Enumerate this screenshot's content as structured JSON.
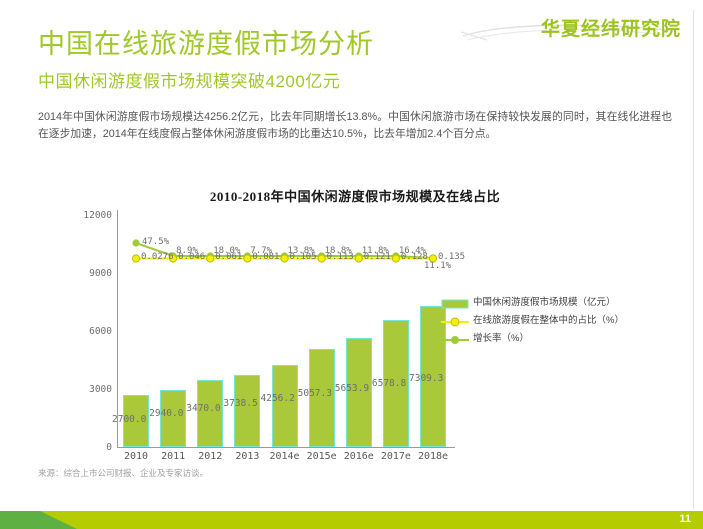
{
  "slide": {
    "logo_text": "华夏经纬研究院",
    "title": "中国在线旅游度假市场分析",
    "subtitle": "中国休闲游度假市场规模突破4200亿元",
    "body": "2014年中国休闲游度假市场规模达4256.2亿元，比去年同期增长13.8%。中国休闲旅游市场在保持较快发展的同时，其在线化进程也在逐步加速，2014年在线度假占整体休闲游度假市场的比重达10.5%，比去年增加2.4个百分点。",
    "source_note": "来源：综合上市公司财报、企业及专家访谈。",
    "page_number": "11"
  },
  "colors": {
    "accent_green": "#a0c828",
    "bar_fill": "#aac93a",
    "bar_border": "#76e6d5",
    "line_yellow": "#f2ef0a",
    "line_green": "#9fcb3a",
    "footer_dark_green": "#5fb043",
    "footer_light_green": "#b5cc00",
    "chart_label_grey": "#6f6f6f"
  },
  "chart_data": {
    "type": "bar",
    "title": "2010-2018年中国休闲游度假市场规模及在线占比",
    "categories": [
      "2010",
      "2011",
      "2012",
      "2013",
      "2014e",
      "2015e",
      "2016e",
      "2017e",
      "2018e"
    ],
    "series": [
      {
        "name": "中国休闲游度假市场规模（亿元）",
        "type": "bar",
        "color": "#aac93a",
        "values": [
          2700.0,
          2940.0,
          3470.0,
          3738.5,
          4256.2,
          5057.3,
          5653.9,
          6578.8,
          7309.3
        ],
        "labels": [
          "2700.0",
          "2940.0",
          "3470.0",
          "3738.5",
          "4256.2",
          "5057.3",
          "5653.9",
          "6578.8",
          "7309.3"
        ]
      },
      {
        "name": "在线旅游度假在整体中的占比（%）",
        "type": "line",
        "color": "#f2ef0a",
        "values": [
          0.0276,
          0.046,
          0.061,
          0.081,
          0.105,
          0.113,
          0.121,
          0.128,
          0.135
        ],
        "labels": [
          "0.0276",
          "0.046",
          "0.061",
          "0.081",
          "0.105",
          "0.113",
          "0.121",
          "0.128",
          "0.135"
        ]
      },
      {
        "name": "增长率（%）",
        "type": "line",
        "color": "#9fcb3a",
        "values": [
          0.475,
          0.089,
          0.18,
          0.077,
          0.138,
          0.188,
          0.118,
          0.164,
          0.111
        ],
        "labels": [
          "47.5%",
          "8.9%",
          "18.0%",
          "7.7%",
          "13.8%",
          "18.8%",
          "11.8%",
          "16.4%",
          "11.1%"
        ]
      }
    ],
    "ylabel": "",
    "ylim": [
      0,
      12000
    ],
    "yticks": [
      0,
      3000,
      6000,
      9000,
      12000
    ],
    "grid": false,
    "legend_position": "right",
    "note": "line series render as nearly flat overlapping lines near top of plot with jumbled overlapping data labels (secondary axis not shown)"
  }
}
